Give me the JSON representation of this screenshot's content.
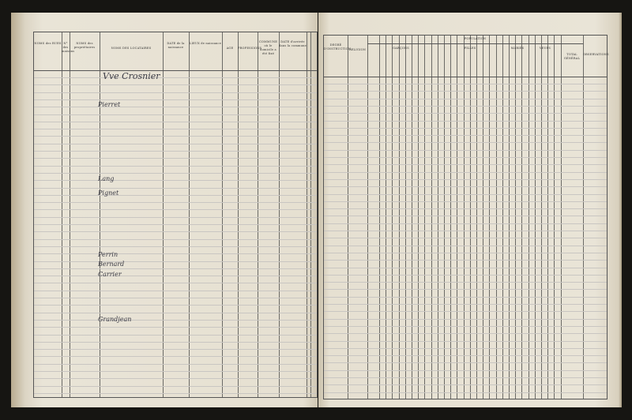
{
  "left_page": {
    "headers": [
      "NOMS des RUES",
      "N° des maisons",
      "NOMS des propriétaires",
      "NOMS DES LOCATAIRES",
      "DATE de la naissance",
      "LIEUX de naissance",
      "AGE",
      "PROFESSIONS",
      "COMMUNE où le domicile a été fixé",
      "DATE d'arrivée dans la commune"
    ],
    "entries": [
      "Vve Crosnier",
      "Pierret",
      "Lang",
      "Pignet",
      "Perrin",
      "Bernard",
      "Carrier",
      "Grandjean"
    ]
  },
  "right_page": {
    "headers": {
      "instruction": "DEGRÉ D'INSTRUCTION",
      "religion": "RELIGION",
      "population": "POPULATION",
      "boys": "GARÇONS",
      "girls": "FILLES",
      "married": "MARIÉS",
      "widowed": "VEUFS",
      "total": "TOTAL GÉNÉRAL",
      "observations": "OBSERVATIONS"
    }
  }
}
